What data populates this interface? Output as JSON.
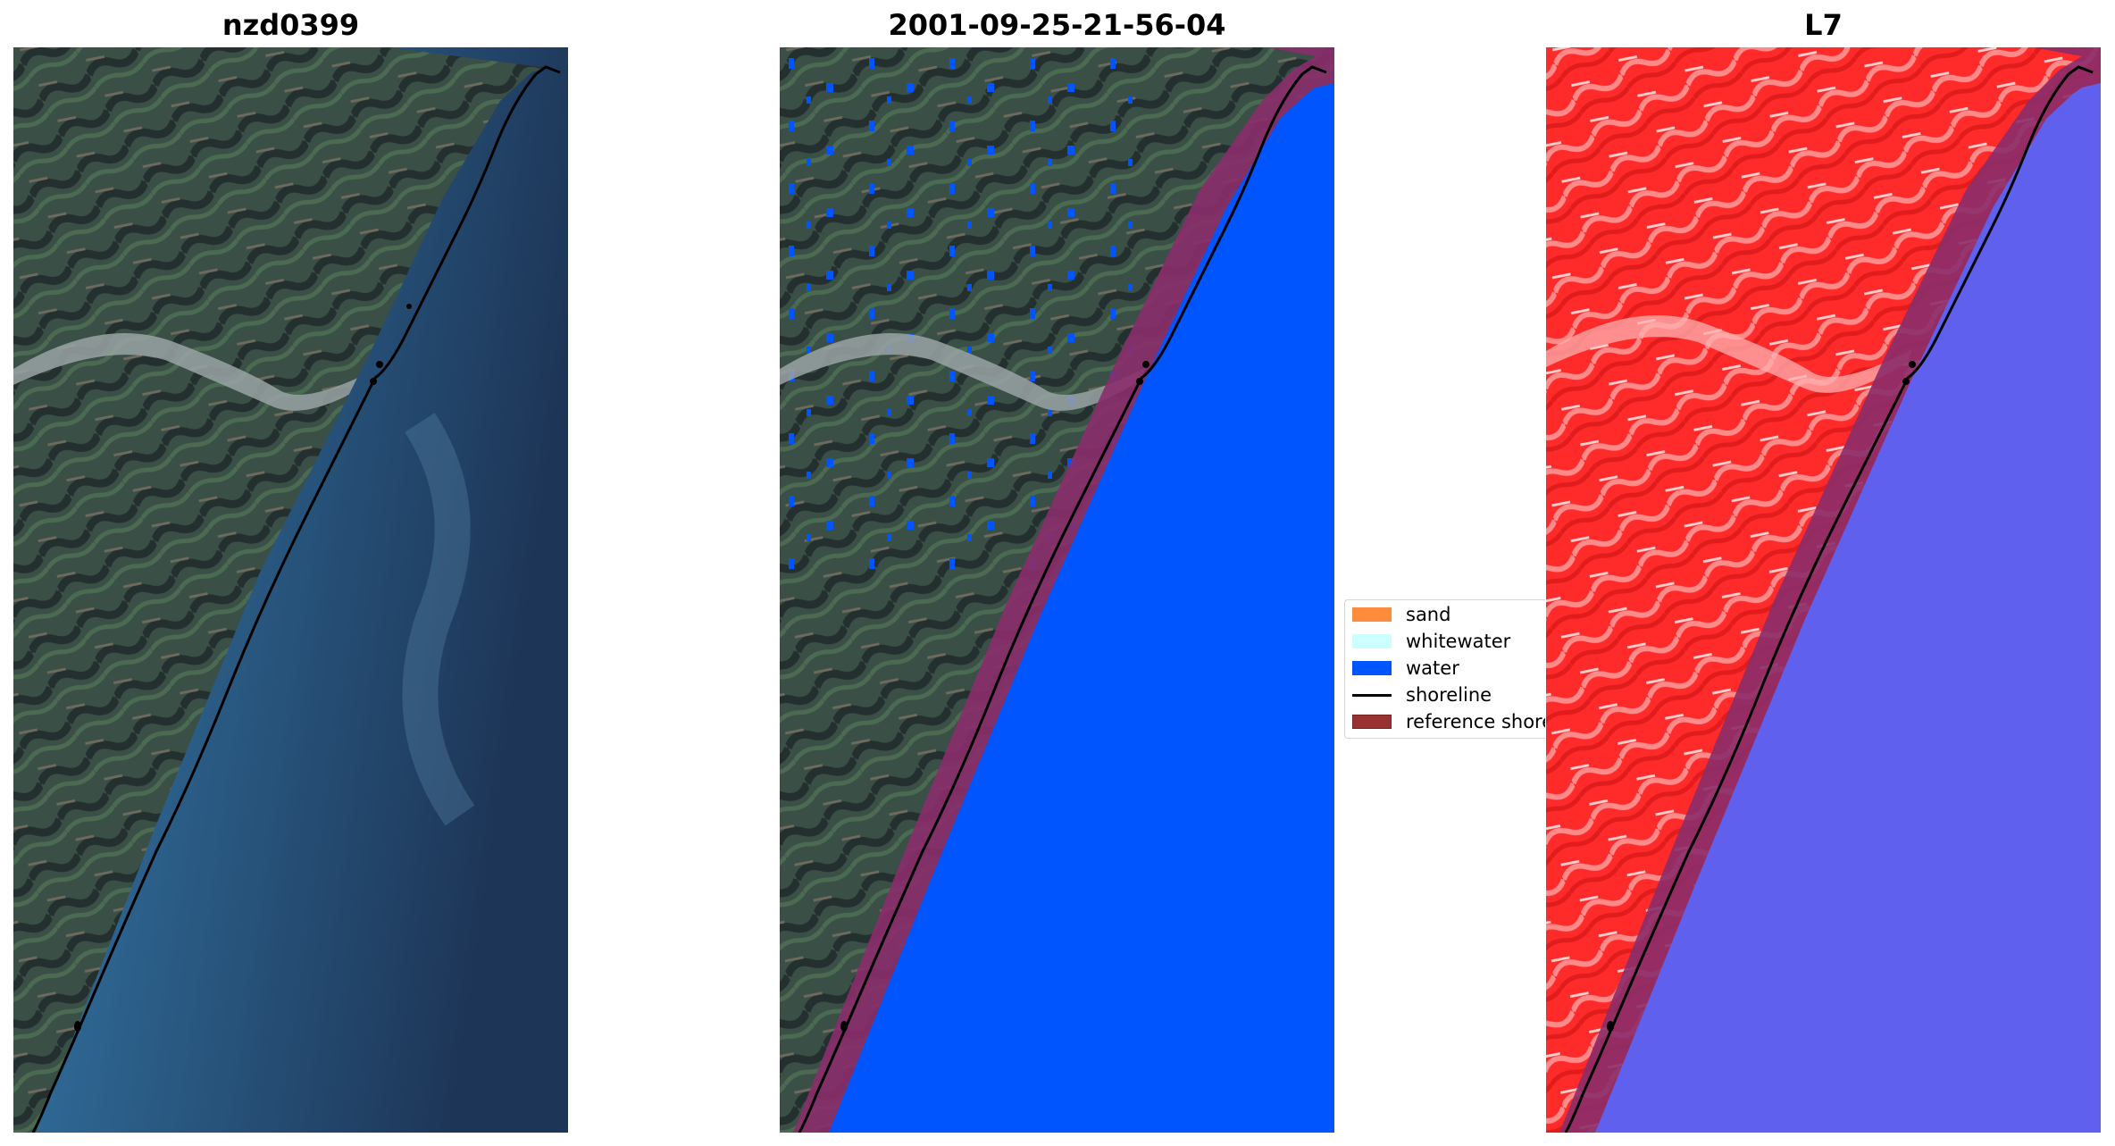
{
  "panels": [
    {
      "title": "nzd0399",
      "kind": "rgb"
    },
    {
      "title": "2001-09-25-21-56-04",
      "kind": "classified"
    },
    {
      "title": "L7",
      "kind": "mndwi"
    }
  ],
  "legend": {
    "items": [
      {
        "label": "sand",
        "color": "#ff8b3d",
        "type": "patch"
      },
      {
        "label": "whitewater",
        "color": "#ccffff",
        "type": "patch"
      },
      {
        "label": "water",
        "color": "#0055ff",
        "type": "patch"
      },
      {
        "label": "shoreline",
        "color": "#000000",
        "type": "line"
      },
      {
        "label": "reference shoreline buffer",
        "color": "#993333",
        "type": "patch"
      }
    ]
  },
  "colors": {
    "land_dark": "#2f3d3c",
    "land_green": "#3a5a45",
    "river": "#9aa3a4",
    "ocean_near": "#2f6a96",
    "ocean_far": "#1d3557",
    "water_class": "#0055ff",
    "buffer": "#8a2e6a",
    "land_red": "#ff2a2a",
    "water_index": "#6060ee"
  },
  "icons": {
    "shoreline": "black-polyline",
    "panel-image": "satellite-image"
  }
}
